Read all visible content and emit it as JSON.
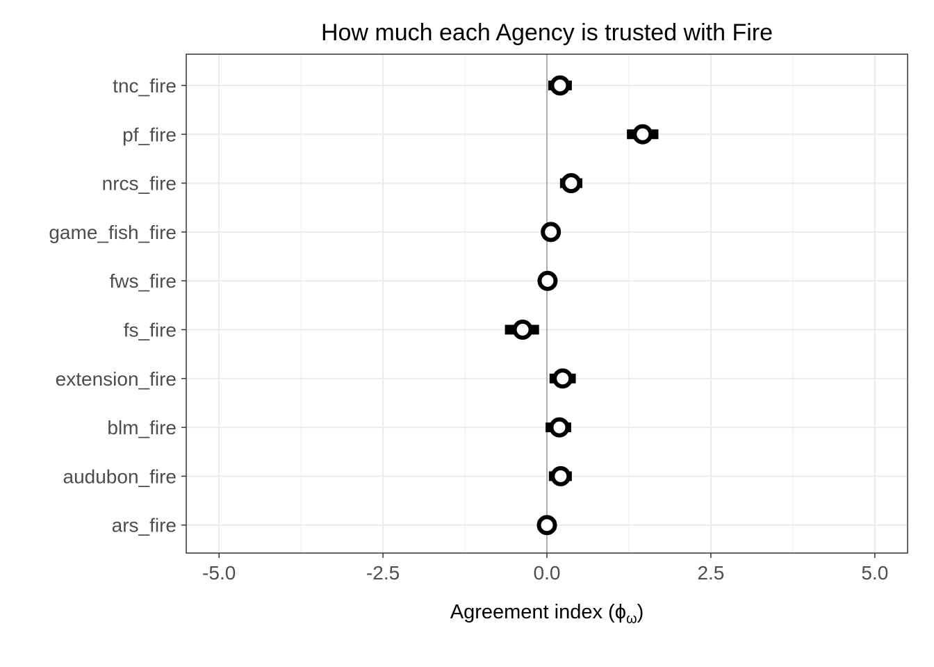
{
  "chart_data": {
    "type": "scatter",
    "title": "How much each Agency is trusted with Fire",
    "xlabel": "Agreement index (",
    "xlabel_symbol": "ϕ",
    "xlabel_subscript": "ω",
    "xlabel_close": ")",
    "ylabel": "",
    "xlim": [
      -5.5,
      5.5
    ],
    "xticks": [
      -5.0,
      -2.5,
      0.0,
      2.5,
      5.0
    ],
    "xtick_labels": [
      "-5.0",
      "-2.5",
      "0.0",
      "2.5",
      "5.0"
    ],
    "reference_line_x": 0,
    "grid": true,
    "categories": [
      "tnc_fire",
      "pf_fire",
      "nrcs_fire",
      "game_fish_fire",
      "fws_fire",
      "fs_fire",
      "extension_fire",
      "blm_fire",
      "audubon_fire",
      "ars_fire"
    ],
    "points": [
      {
        "label": "tnc_fire",
        "value": 0.2,
        "low": 0.02,
        "high": 0.38
      },
      {
        "label": "pf_fire",
        "value": 1.46,
        "low": 1.22,
        "high": 1.7
      },
      {
        "label": "nrcs_fire",
        "value": 0.37,
        "low": 0.2,
        "high": 0.54
      },
      {
        "label": "game_fish_fire",
        "value": 0.06,
        "low": -0.06,
        "high": 0.18
      },
      {
        "label": "fws_fire",
        "value": 0.01,
        "low": -0.1,
        "high": 0.12
      },
      {
        "label": "fs_fire",
        "value": -0.37,
        "low": -0.64,
        "high": -0.12
      },
      {
        "label": "extension_fire",
        "value": 0.24,
        "low": 0.04,
        "high": 0.44
      },
      {
        "label": "blm_fire",
        "value": 0.19,
        "low": -0.02,
        "high": 0.37
      },
      {
        "label": "audubon_fire",
        "value": 0.21,
        "low": 0.03,
        "high": 0.38
      },
      {
        "label": "ars_fire",
        "value": 0.0,
        "low": -0.14,
        "high": 0.14
      }
    ],
    "colors": {
      "marker_stroke": "#000000",
      "marker_fill": "#ffffff",
      "grid": "#ebebeb",
      "reference_line": "#9a9a9a",
      "panel_border": "#333333",
      "tick_text": "#4d4d4d"
    }
  }
}
